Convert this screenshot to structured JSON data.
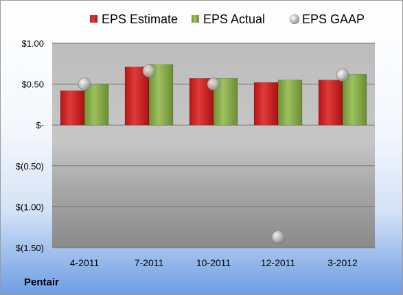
{
  "chart_data": {
    "type": "bar",
    "categories": [
      "4-2011",
      "7-2011",
      "10-2011",
      "12-2011",
      "3-2012"
    ],
    "series": [
      {
        "name": "EPS Estimate",
        "kind": "bar",
        "color": "#d42020",
        "values": [
          0.42,
          0.71,
          0.57,
          0.52,
          0.55
        ]
      },
      {
        "name": "EPS Actual",
        "kind": "bar",
        "color": "#8cb050",
        "values": [
          0.5,
          0.74,
          0.57,
          0.55,
          0.62
        ]
      },
      {
        "name": "EPS GAAP",
        "kind": "marker",
        "color": "#b8b8b8",
        "values": [
          0.5,
          0.66,
          0.5,
          -1.37,
          0.61
        ]
      }
    ],
    "y_ticks": [
      {
        "value": 1.0,
        "label": "$1.00"
      },
      {
        "value": 0.5,
        "label": "$0.50"
      },
      {
        "value": 0,
        "label": "$-"
      },
      {
        "value": -0.5,
        "label": "$(0.50)"
      },
      {
        "value": -1.0,
        "label": "$(1.00)"
      },
      {
        "value": -1.5,
        "label": "$(1.50)"
      }
    ],
    "ylim": [
      -1.5,
      1.0
    ],
    "grid": true,
    "legend_position": "top"
  },
  "footer": {
    "company": "Pentair"
  }
}
